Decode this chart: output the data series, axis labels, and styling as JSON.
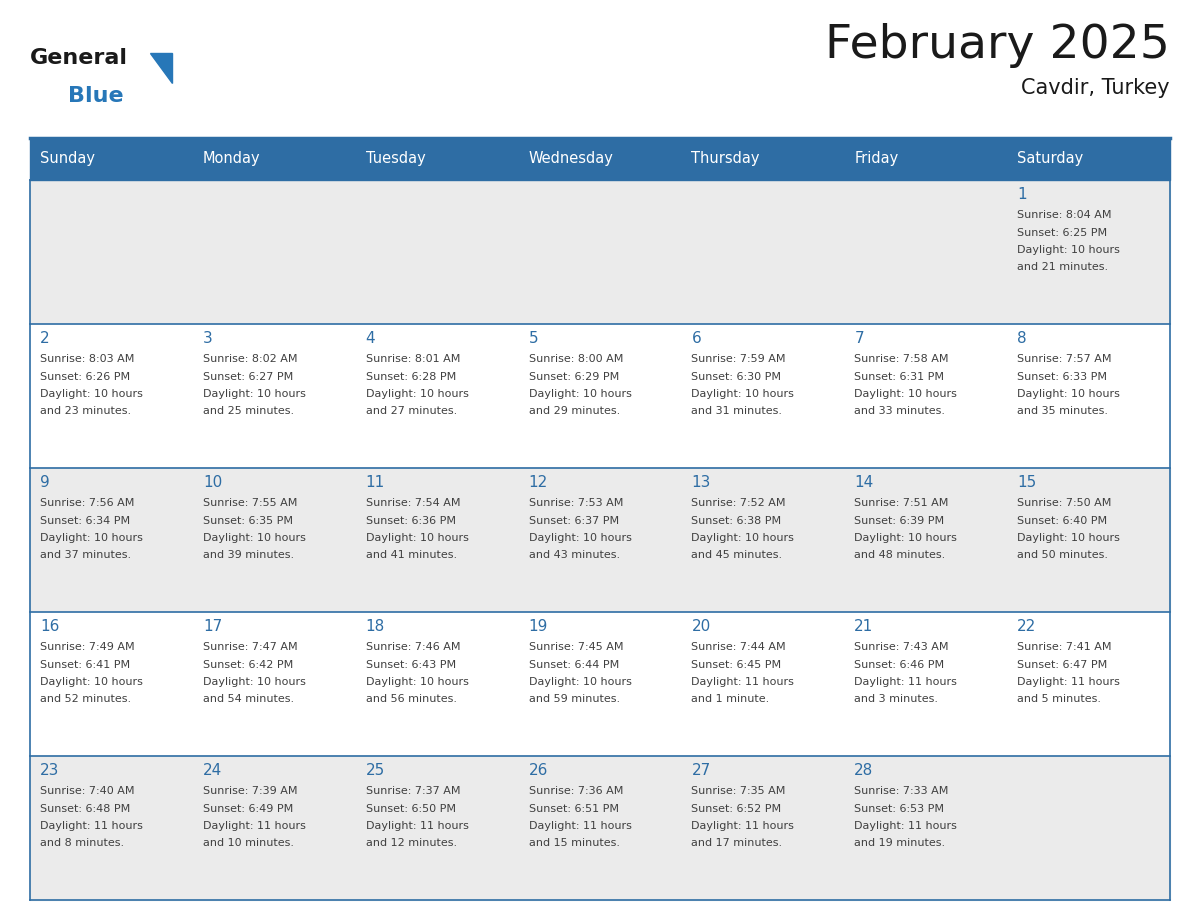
{
  "title": "February 2025",
  "subtitle": "Cavdir, Turkey",
  "days_of_week": [
    "Sunday",
    "Monday",
    "Tuesday",
    "Wednesday",
    "Thursday",
    "Friday",
    "Saturday"
  ],
  "header_bg_color": "#2E6DA4",
  "header_text_color": "#FFFFFF",
  "row_bg_colors": [
    "#EBEBEB",
    "#FFFFFF",
    "#EBEBEB",
    "#FFFFFF",
    "#EBEBEB"
  ],
  "border_color": "#2E6DA4",
  "day_number_color": "#2E6DA4",
  "info_text_color": "#404040",
  "title_color": "#1a1a1a",
  "logo_general_color": "#1a1a1a",
  "logo_blue_color": "#2777B8",
  "calendar_data": [
    {
      "day": 1,
      "col": 6,
      "row": 0,
      "sunrise": "8:04 AM",
      "sunset": "6:25 PM",
      "daylight": "10 hours and 21 minutes."
    },
    {
      "day": 2,
      "col": 0,
      "row": 1,
      "sunrise": "8:03 AM",
      "sunset": "6:26 PM",
      "daylight": "10 hours and 23 minutes."
    },
    {
      "day": 3,
      "col": 1,
      "row": 1,
      "sunrise": "8:02 AM",
      "sunset": "6:27 PM",
      "daylight": "10 hours and 25 minutes."
    },
    {
      "day": 4,
      "col": 2,
      "row": 1,
      "sunrise": "8:01 AM",
      "sunset": "6:28 PM",
      "daylight": "10 hours and 27 minutes."
    },
    {
      "day": 5,
      "col": 3,
      "row": 1,
      "sunrise": "8:00 AM",
      "sunset": "6:29 PM",
      "daylight": "10 hours and 29 minutes."
    },
    {
      "day": 6,
      "col": 4,
      "row": 1,
      "sunrise": "7:59 AM",
      "sunset": "6:30 PM",
      "daylight": "10 hours and 31 minutes."
    },
    {
      "day": 7,
      "col": 5,
      "row": 1,
      "sunrise": "7:58 AM",
      "sunset": "6:31 PM",
      "daylight": "10 hours and 33 minutes."
    },
    {
      "day": 8,
      "col": 6,
      "row": 1,
      "sunrise": "7:57 AM",
      "sunset": "6:33 PM",
      "daylight": "10 hours and 35 minutes."
    },
    {
      "day": 9,
      "col": 0,
      "row": 2,
      "sunrise": "7:56 AM",
      "sunset": "6:34 PM",
      "daylight": "10 hours and 37 minutes."
    },
    {
      "day": 10,
      "col": 1,
      "row": 2,
      "sunrise": "7:55 AM",
      "sunset": "6:35 PM",
      "daylight": "10 hours and 39 minutes."
    },
    {
      "day": 11,
      "col": 2,
      "row": 2,
      "sunrise": "7:54 AM",
      "sunset": "6:36 PM",
      "daylight": "10 hours and 41 minutes."
    },
    {
      "day": 12,
      "col": 3,
      "row": 2,
      "sunrise": "7:53 AM",
      "sunset": "6:37 PM",
      "daylight": "10 hours and 43 minutes."
    },
    {
      "day": 13,
      "col": 4,
      "row": 2,
      "sunrise": "7:52 AM",
      "sunset": "6:38 PM",
      "daylight": "10 hours and 45 minutes."
    },
    {
      "day": 14,
      "col": 5,
      "row": 2,
      "sunrise": "7:51 AM",
      "sunset": "6:39 PM",
      "daylight": "10 hours and 48 minutes."
    },
    {
      "day": 15,
      "col": 6,
      "row": 2,
      "sunrise": "7:50 AM",
      "sunset": "6:40 PM",
      "daylight": "10 hours and 50 minutes."
    },
    {
      "day": 16,
      "col": 0,
      "row": 3,
      "sunrise": "7:49 AM",
      "sunset": "6:41 PM",
      "daylight": "10 hours and 52 minutes."
    },
    {
      "day": 17,
      "col": 1,
      "row": 3,
      "sunrise": "7:47 AM",
      "sunset": "6:42 PM",
      "daylight": "10 hours and 54 minutes."
    },
    {
      "day": 18,
      "col": 2,
      "row": 3,
      "sunrise": "7:46 AM",
      "sunset": "6:43 PM",
      "daylight": "10 hours and 56 minutes."
    },
    {
      "day": 19,
      "col": 3,
      "row": 3,
      "sunrise": "7:45 AM",
      "sunset": "6:44 PM",
      "daylight": "10 hours and 59 minutes."
    },
    {
      "day": 20,
      "col": 4,
      "row": 3,
      "sunrise": "7:44 AM",
      "sunset": "6:45 PM",
      "daylight": "11 hours and 1 minute."
    },
    {
      "day": 21,
      "col": 5,
      "row": 3,
      "sunrise": "7:43 AM",
      "sunset": "6:46 PM",
      "daylight": "11 hours and 3 minutes."
    },
    {
      "day": 22,
      "col": 6,
      "row": 3,
      "sunrise": "7:41 AM",
      "sunset": "6:47 PM",
      "daylight": "11 hours and 5 minutes."
    },
    {
      "day": 23,
      "col": 0,
      "row": 4,
      "sunrise": "7:40 AM",
      "sunset": "6:48 PM",
      "daylight": "11 hours and 8 minutes."
    },
    {
      "day": 24,
      "col": 1,
      "row": 4,
      "sunrise": "7:39 AM",
      "sunset": "6:49 PM",
      "daylight": "11 hours and 10 minutes."
    },
    {
      "day": 25,
      "col": 2,
      "row": 4,
      "sunrise": "7:37 AM",
      "sunset": "6:50 PM",
      "daylight": "11 hours and 12 minutes."
    },
    {
      "day": 26,
      "col": 3,
      "row": 4,
      "sunrise": "7:36 AM",
      "sunset": "6:51 PM",
      "daylight": "11 hours and 15 minutes."
    },
    {
      "day": 27,
      "col": 4,
      "row": 4,
      "sunrise": "7:35 AM",
      "sunset": "6:52 PM",
      "daylight": "11 hours and 17 minutes."
    },
    {
      "day": 28,
      "col": 5,
      "row": 4,
      "sunrise": "7:33 AM",
      "sunset": "6:53 PM",
      "daylight": "11 hours and 19 minutes."
    }
  ],
  "fig_width": 11.88,
  "fig_height": 9.18,
  "dpi": 100
}
